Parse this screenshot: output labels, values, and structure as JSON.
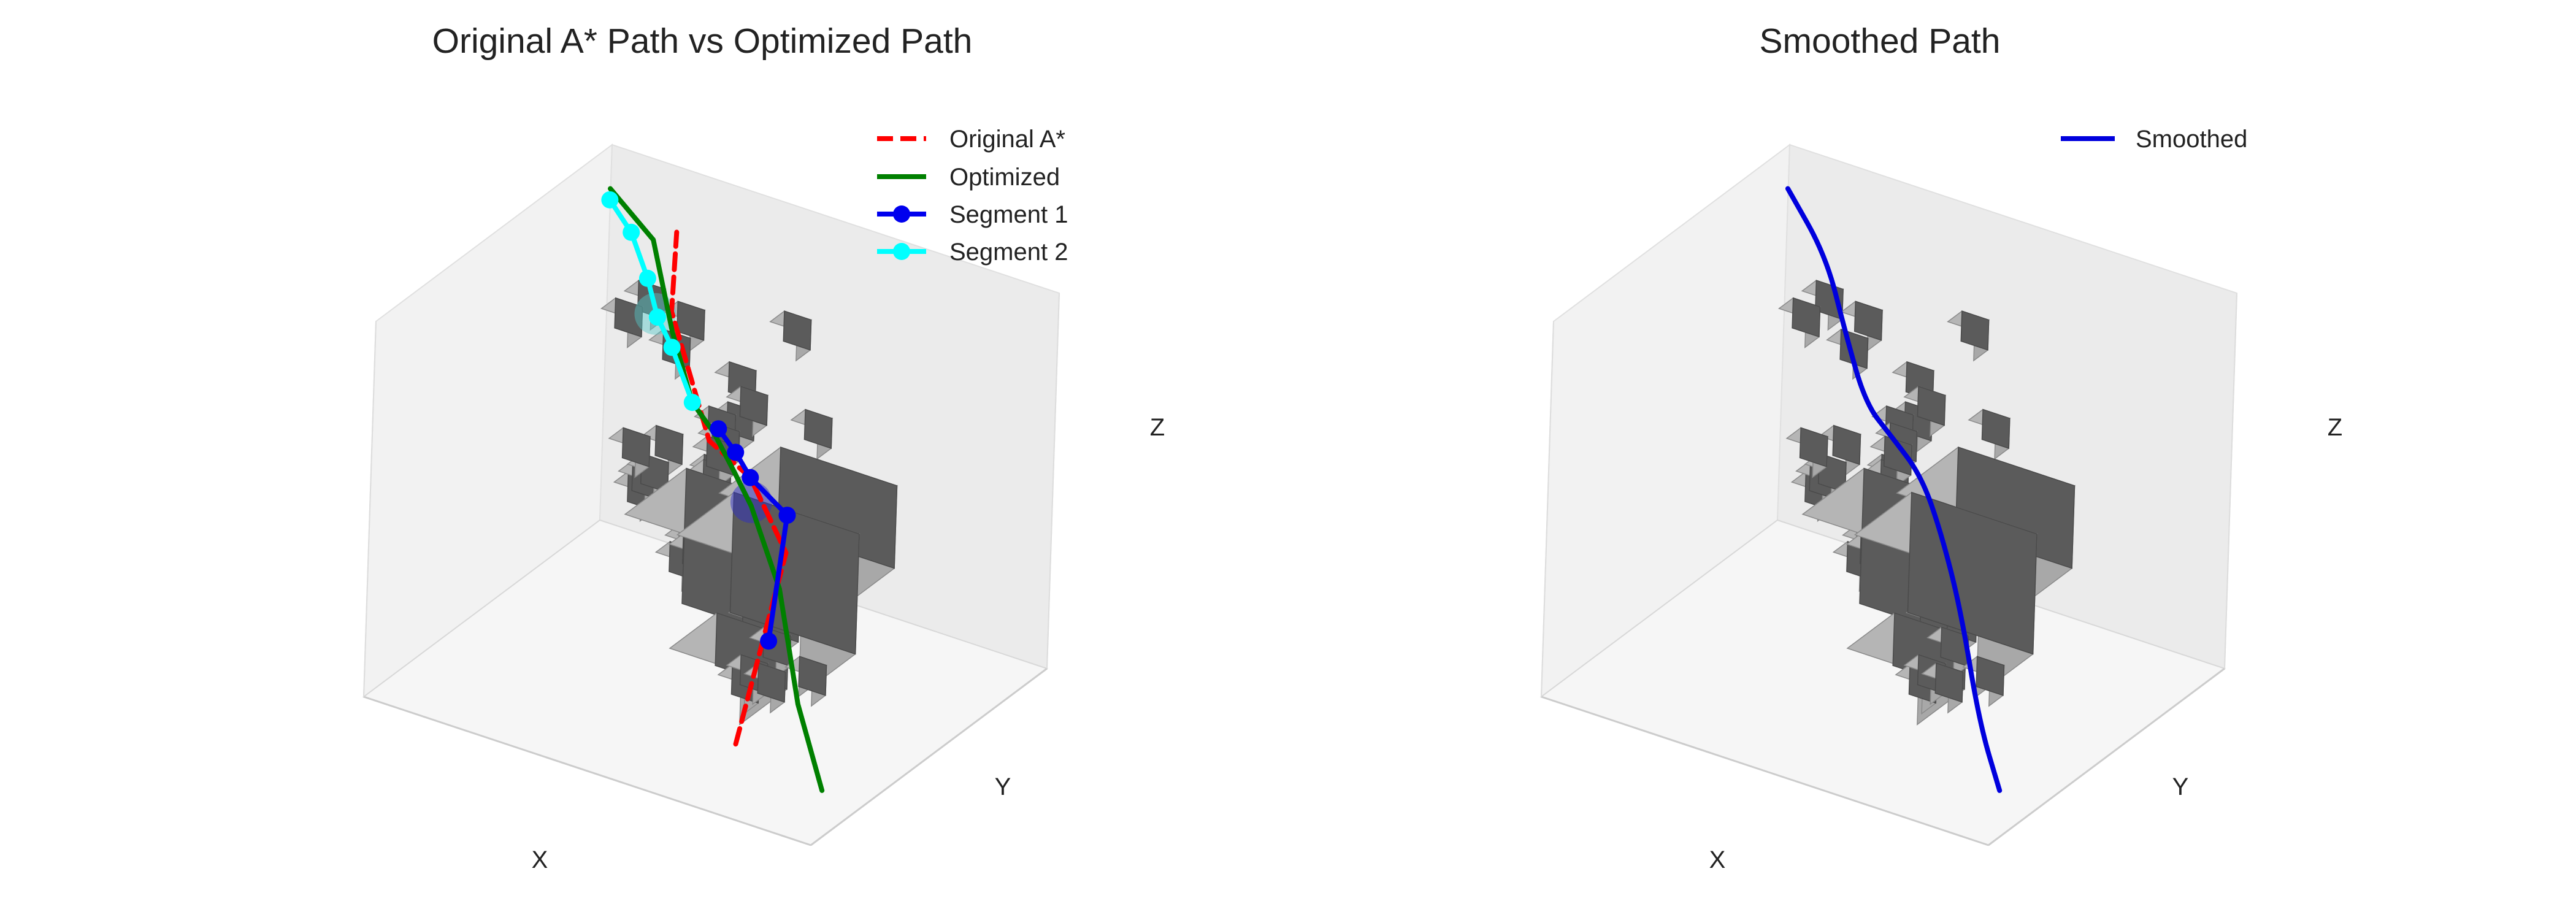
{
  "chart_data": [
    {
      "type": "line3d",
      "title": "Original A* Path vs Optimized Path",
      "xlabel": "X",
      "ylabel": "Y",
      "zlabel": "Z",
      "legend": "top-right",
      "series": [
        {
          "name": "Original A*",
          "style": "dashed",
          "color": "#ff0000",
          "points": [
            [
              25,
              15,
              10
            ],
            [
              28,
              40,
              48
            ],
            [
              40,
              47,
              60
            ],
            [
              57,
              62,
              56
            ],
            [
              79,
              87,
              70
            ],
            [
              81,
              92,
              88
            ]
          ]
        },
        {
          "name": "Optimized",
          "style": "solid",
          "color": "#008000",
          "points": [
            [
              2,
              8,
              10
            ],
            [
              10,
              12,
              28
            ],
            [
              20,
              22,
              50
            ],
            [
              34,
              36,
              60
            ],
            [
              42,
              44,
              62
            ],
            [
              52,
              54,
              64
            ],
            [
              60,
              60,
              66
            ],
            [
              70,
              70,
              76
            ],
            [
              80,
              80,
              92
            ],
            [
              95,
              90,
              95
            ]
          ]
        },
        {
          "name": "Segment 1",
          "style": "line-markers",
          "color": "#0000ee",
          "points": [
            [
              20,
              18,
              38
            ],
            [
              28,
              40,
              58
            ],
            [
              40,
              47,
              60
            ],
            [
              46,
              52,
              62
            ],
            [
              52,
              56,
              64
            ]
          ]
        },
        {
          "name": "Segment 2",
          "style": "line-markers",
          "color": "#00ffff",
          "points": [
            [
              60,
              60,
              66
            ],
            [
              70,
              70,
              72
            ],
            [
              77,
              77,
              74
            ],
            [
              82,
              82,
              80
            ],
            [
              88,
              86,
              88
            ],
            [
              95,
              90,
              92
            ]
          ]
        }
      ],
      "spheres": [
        {
          "center": [
            34,
            36,
            61
          ],
          "color": "#2a2acc"
        },
        {
          "center": [
            78,
            78,
            74
          ],
          "color": "#55c8c8"
        }
      ]
    },
    {
      "type": "line3d",
      "title": "Smoothed Path",
      "xlabel": "X",
      "ylabel": "Y",
      "zlabel": "Z",
      "legend": "top-right",
      "series": [
        {
          "name": "Smoothed",
          "style": "solid",
          "color": "#0000dd",
          "points": [
            [
              2,
              8,
              10
            ],
            [
              10,
              14,
              22
            ],
            [
              18,
              20,
              46
            ],
            [
              28,
              30,
              58
            ],
            [
              40,
              44,
              62
            ],
            [
              52,
              54,
              63
            ],
            [
              62,
              62,
              64
            ],
            [
              72,
              72,
              74
            ],
            [
              82,
              82,
              86
            ],
            [
              95,
              90,
              95
            ]
          ]
        }
      ]
    }
  ],
  "obstacles": [
    [
      2,
      20,
      72,
      6,
      6,
      8
    ],
    [
      8,
      4,
      64,
      6,
      6,
      8
    ],
    [
      20,
      6,
      66,
      6,
      6,
      8
    ],
    [
      32,
      60,
      62,
      6,
      6,
      8
    ],
    [
      45,
      75,
      76,
      6,
      6,
      8
    ],
    [
      6,
      10,
      30,
      6,
      6,
      8
    ],
    [
      20,
      12,
      24,
      6,
      6,
      8
    ],
    [
      26,
      24,
      30,
      6,
      6,
      8
    ],
    [
      30,
      30,
      20,
      6,
      6,
      8
    ],
    [
      30,
      28,
      10,
      6,
      6,
      8
    ],
    [
      36,
      34,
      14,
      6,
      6,
      8
    ],
    [
      50,
      50,
      36,
      6,
      6,
      8
    ],
    [
      54,
      52,
      24,
      6,
      6,
      8
    ],
    [
      58,
      58,
      22,
      6,
      6,
      8
    ],
    [
      62,
      62,
      14,
      6,
      6,
      8
    ],
    [
      48,
      48,
      48,
      6,
      6,
      8
    ],
    [
      52,
      56,
      44,
      6,
      6,
      8
    ],
    [
      70,
      70,
      38,
      6,
      6,
      8
    ],
    [
      74,
      72,
      28,
      6,
      6,
      8
    ],
    [
      80,
      80,
      20,
      6,
      6,
      8
    ],
    [
      86,
      90,
      10,
      6,
      6,
      8
    ],
    [
      10,
      2,
      40,
      6,
      6,
      8
    ],
    [
      12,
      14,
      50,
      6,
      6,
      8
    ],
    [
      64,
      44,
      52,
      6,
      6,
      8
    ],
    [
      28,
      10,
      80,
      6,
      6,
      8
    ],
    [
      30,
      16,
      80,
      6,
      6,
      8
    ],
    [
      34,
      22,
      80,
      6,
      6,
      8
    ],
    [
      24,
      16,
      92,
      6,
      6,
      8
    ],
    [
      38,
      38,
      72,
      6,
      6,
      8
    ],
    [
      40,
      42,
      80,
      6,
      6,
      8
    ],
    [
      62,
      62,
      78,
      6,
      6,
      8
    ],
    [
      66,
      64,
      68,
      6,
      6,
      8
    ],
    [
      80,
      80,
      68,
      6,
      6,
      8
    ],
    [
      86,
      82,
      60,
      6,
      6,
      8
    ],
    [
      14,
      8,
      26,
      6,
      6,
      8
    ],
    [
      8,
      22,
      48,
      26,
      26,
      22
    ],
    [
      16,
      24,
      22,
      28,
      24,
      32
    ],
    [
      44,
      52,
      0,
      26,
      26,
      36
    ],
    [
      36,
      38,
      0,
      16,
      20,
      14
    ]
  ]
}
